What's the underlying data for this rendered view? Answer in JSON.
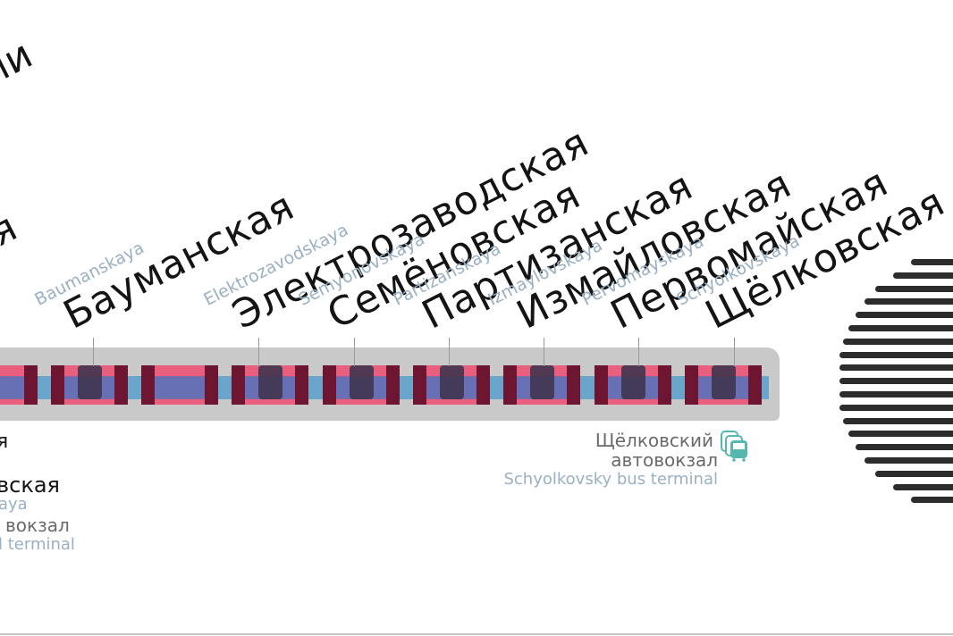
{
  "colors": {
    "line_band": "#c9c9c9",
    "track": "#6aa6cc",
    "car_pink": "#e8607e",
    "car_maroon": "#6e1531",
    "car_purple": "#7a6ba8",
    "station_en": "#9ab0c3",
    "bus_icon": "#55b7b0",
    "terminus_bars": "#2c2c2c"
  },
  "stations": [
    {
      "ru": "Бауманская",
      "en": "Baumanskaya"
    },
    {
      "ru": "Электрозаводская",
      "en": "Elektrozavodskaya"
    },
    {
      "ru": "Семёновская",
      "en": "Semyonovskaya"
    },
    {
      "ru": "Партизанская",
      "en": "Partizanskaya"
    },
    {
      "ru": "Измайловская",
      "en": "Izmaylovskaya"
    },
    {
      "ru": "Первомайская",
      "en": "Pervomayskaya"
    },
    {
      "ru": "Щёлковская",
      "en": "Schyolkovskaya"
    }
  ],
  "cropped_left": {
    "top_ru": "ии",
    "mid_ru": "ая",
    "label_1": "я",
    "label_2": "вская",
    "label_3": "aya",
    "label_4": "вокзал",
    "label_5": "l terminal"
  },
  "bus_terminal": {
    "ru_line1": "Щёлковский",
    "ru_line2": "автовокзал",
    "en": "Schyolkovsky bus terminal",
    "icon": "bus-icon"
  }
}
